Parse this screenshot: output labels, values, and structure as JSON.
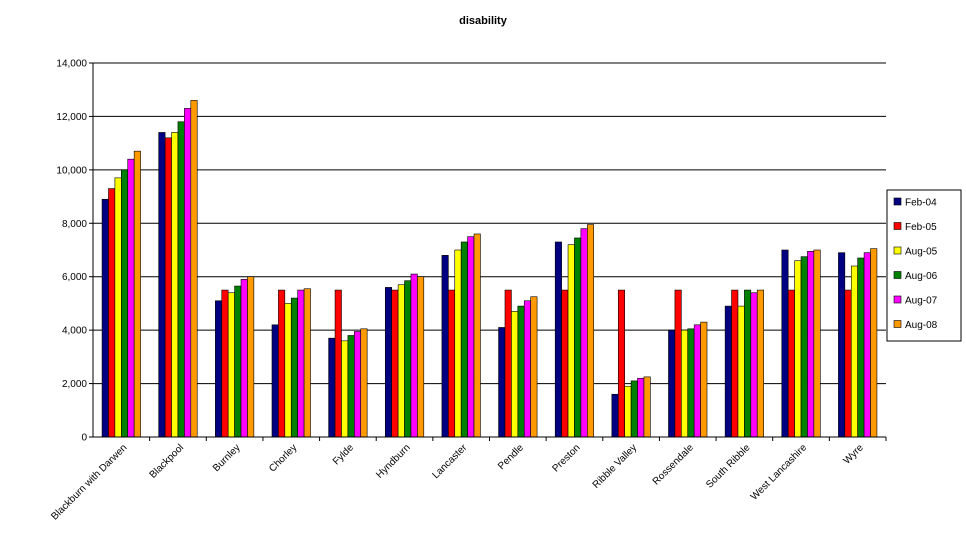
{
  "chart_data": {
    "type": "bar",
    "title": "disability",
    "xlabel": "",
    "ylabel": "",
    "ylim": [
      0,
      14000
    ],
    "yticks": [
      0,
      2000,
      4000,
      6000,
      8000,
      10000,
      12000,
      14000
    ],
    "ytick_labels": [
      "0",
      "2,000",
      "4,000",
      "6,000",
      "8,000",
      "10,000",
      "12,000",
      "14,000"
    ],
    "grid": true,
    "legend_position": "right",
    "categories": [
      "Blackburn with Darwen",
      "Blackpool",
      "Burnley",
      "Chorley",
      "Fylde",
      "Hyndburn",
      "Lancaster",
      "Pendle",
      "Preston",
      "Ribble Valley",
      "Rossendale",
      "South Ribble",
      "West Lancashire",
      "Wyre"
    ],
    "series": [
      {
        "name": "Feb-04",
        "color": "#000080",
        "values": [
          8900,
          11400,
          5100,
          4200,
          3700,
          5600,
          6800,
          4100,
          7300,
          1600,
          4000,
          4900,
          7000,
          6900
        ]
      },
      {
        "name": "Feb-05",
        "color": "#ff0000",
        "values": [
          9300,
          11200,
          5500,
          5500,
          5500,
          5500,
          5500,
          5500,
          5500,
          5500,
          5500,
          5500,
          5500,
          5500
        ]
      },
      {
        "name": "Aug-05",
        "color": "#ffff00",
        "values": [
          9700,
          11400,
          5400,
          5000,
          3600,
          5700,
          7000,
          4700,
          7200,
          1900,
          4000,
          4900,
          6600,
          6400
        ]
      },
      {
        "name": "Aug-06",
        "color": "#008000",
        "values": [
          10000,
          11800,
          5650,
          5200,
          3800,
          5850,
          7300,
          4900,
          7450,
          2100,
          4050,
          5500,
          6750,
          6700
        ]
      },
      {
        "name": "Aug-07",
        "color": "#ff00ff",
        "values": [
          10400,
          12300,
          5900,
          5500,
          3950,
          6100,
          7500,
          5100,
          7800,
          2200,
          4200,
          5400,
          6950,
          6900
        ]
      },
      {
        "name": "Aug-08",
        "color": "#ff9900",
        "values": [
          10700,
          12600,
          6000,
          5550,
          4050,
          6000,
          7600,
          5250,
          7950,
          2250,
          4300,
          5500,
          7000,
          7050
        ]
      }
    ]
  }
}
